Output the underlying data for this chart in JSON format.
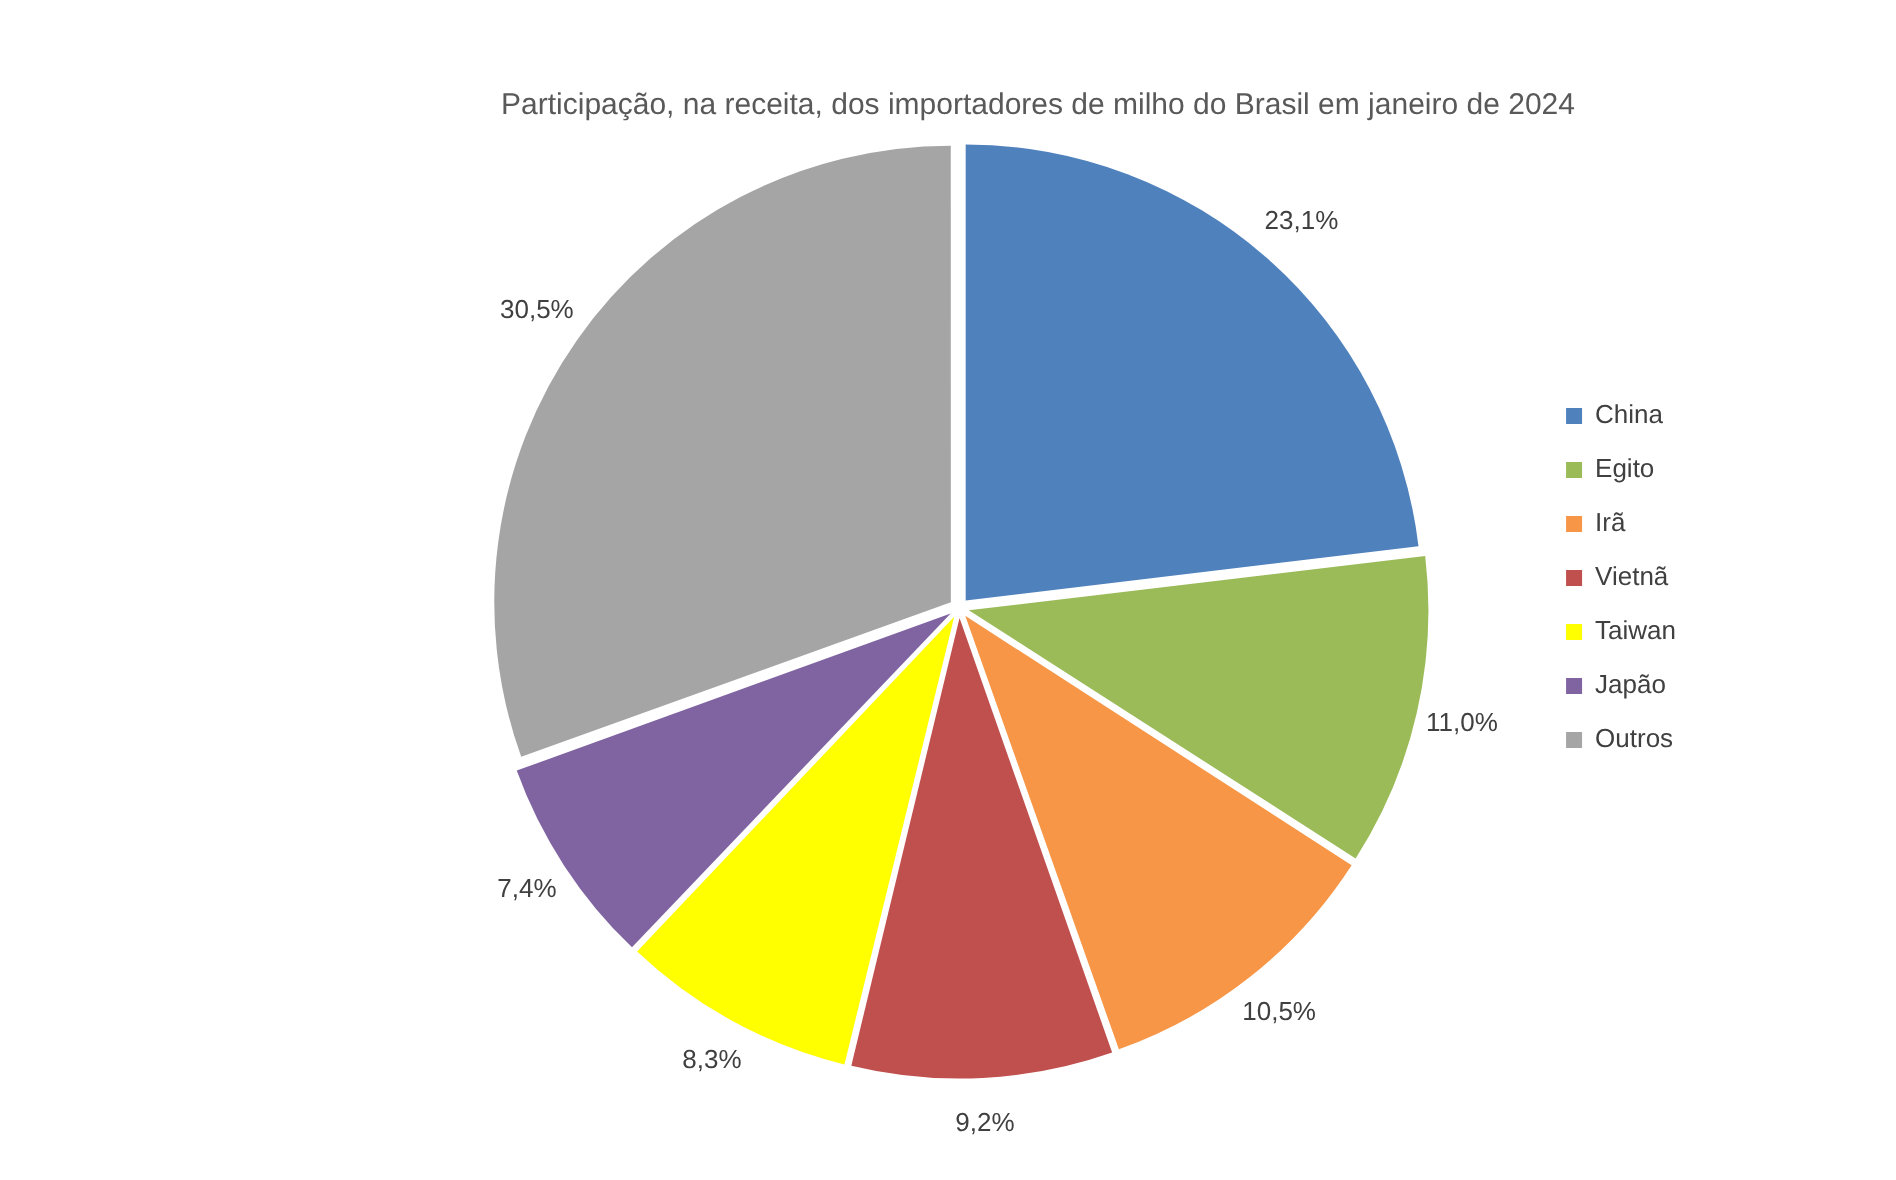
{
  "chart_data": {
    "type": "pie",
    "title": "Participação, na receita, dos importadores de milho do Brasil em janeiro de 2024",
    "categories": [
      "China",
      "Egito",
      "Irã",
      "Vietnã",
      "Taiwan",
      "Japão",
      "Outros"
    ],
    "values": [
      23.1,
      11.0,
      10.5,
      9.2,
      8.3,
      7.4,
      30.5
    ],
    "value_labels": [
      "23,1%",
      "11,0%",
      "10,5%",
      "9,2%",
      "8,3%",
      "7,4%",
      "30,5%"
    ],
    "colors": [
      "#4f81bd",
      "#9bbb59",
      "#f79646",
      "#c0504d",
      "#ffff00",
      "#8064a2",
      "#a5a5a5"
    ],
    "legend": "right"
  }
}
